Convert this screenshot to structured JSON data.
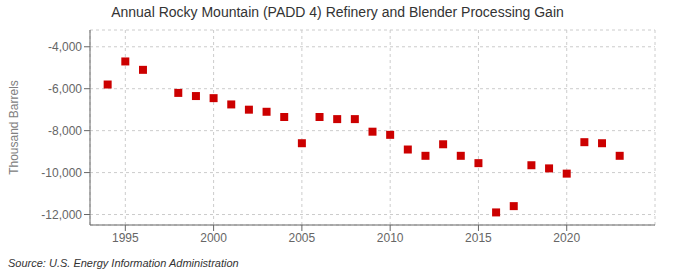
{
  "chart_data": {
    "type": "scatter",
    "title": "Annual Rocky Mountain (PADD 4) Refinery and Blender Processing Gain",
    "y_label": "Thousand Barrels",
    "annotations": [
      "Source: U.S. Energy Information Administration"
    ],
    "x": [
      1994,
      1995,
      1996,
      1998,
      1999,
      2000,
      2001,
      2002,
      2003,
      2004,
      2005,
      2006,
      2007,
      2008,
      2009,
      2010,
      2011,
      2012,
      2013,
      2014,
      2015,
      2016,
      2017,
      2018,
      2019,
      2020,
      2021,
      2022,
      2023
    ],
    "values": [
      -5800,
      -4700,
      -5100,
      -6200,
      -6350,
      -6450,
      -6750,
      -7000,
      -7100,
      -7350,
      -8600,
      -7350,
      -7450,
      -7450,
      -8050,
      -8200,
      -8900,
      -9200,
      -8650,
      -9200,
      -9550,
      -11900,
      -11600,
      -9650,
      -9800,
      -10050,
      -8550,
      -8600,
      -9200
    ],
    "color": "#cc0000",
    "marker": "square",
    "xlim": [
      1993,
      2025
    ],
    "xticks": [
      1995,
      2000,
      2005,
      2010,
      2015,
      2020
    ],
    "ylim": [
      -12500,
      -3200
    ],
    "yticks": [
      {
        "value": -12000,
        "label": "-12,000"
      },
      {
        "value": -10000,
        "label": "-10,000"
      },
      {
        "value": -8000,
        "label": "-8,000"
      },
      {
        "value": -6000,
        "label": "-6,000"
      },
      {
        "value": -4000,
        "label": "-4,000"
      }
    ],
    "grid": true
  }
}
